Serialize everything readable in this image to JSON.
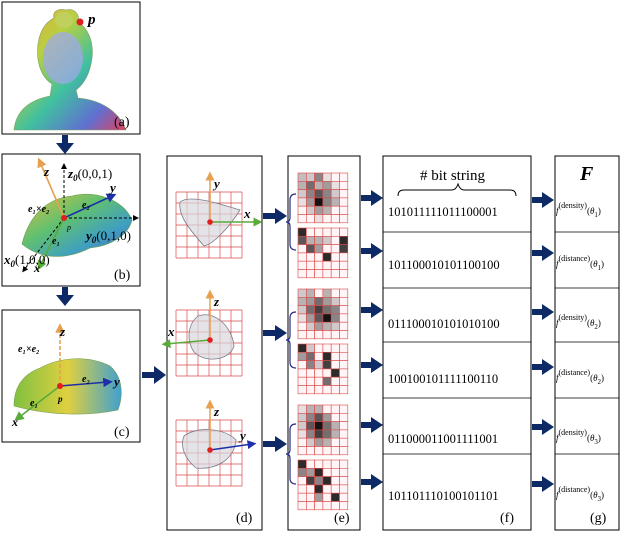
{
  "panels": {
    "a": "(a)",
    "b": "(b)",
    "c": "(c)",
    "d": "(d)",
    "e": "(e)",
    "f": "(f)",
    "g": "(g)"
  },
  "point_label": "p",
  "panel_b": {
    "z0_sym": "z",
    "z0_sub": "0",
    "z0_coord": "(0,0,1)",
    "y0_sym": "y",
    "y0_sub": "0",
    "y0_coord": "(0,1,0)",
    "x0_sym": "x",
    "x0_sub": "0",
    "x0_coord": "(1,0,0)",
    "z": "z",
    "y": "y",
    "x": "x",
    "cross": "e₁×e₂",
    "e2": "e₂",
    "e1": "e₁",
    "p": "p"
  },
  "panel_c": {
    "z": "z",
    "y": "y",
    "x": "x",
    "cross": "e₁×e₂",
    "e2": "e₂",
    "e1": "e₁",
    "p": "p"
  },
  "panel_d": {
    "views": [
      {
        "axis_right": "x",
        "axis_up": "y"
      },
      {
        "axis_left": "x",
        "axis_up": "z"
      },
      {
        "axis_right": "y",
        "axis_up": "z"
      }
    ]
  },
  "bit_header": "# bit string",
  "bit_strings": [
    "101011111011100001",
    "101100010101100100",
    "011100010101010100",
    "100100101111100110",
    "011000011001111001",
    "101101110100101101"
  ],
  "F_title": "F",
  "features": [
    {
      "f": "f",
      "sup": "density",
      "theta": "θ",
      "sub": "1"
    },
    {
      "f": "f",
      "sup": "distance",
      "theta": "θ",
      "sub": "1"
    },
    {
      "f": "f",
      "sup": "density",
      "theta": "θ",
      "sub": "2"
    },
    {
      "f": "f",
      "sup": "distance",
      "theta": "θ",
      "sub": "2"
    },
    {
      "f": "f",
      "sup": "density",
      "theta": "θ",
      "sub": "3"
    },
    {
      "f": "f",
      "sup": "distance",
      "theta": "θ",
      "sub": "3"
    }
  ],
  "colors": {
    "arrow": "#0d2a66",
    "grid_red": "#d94a4a",
    "axis_blue": "#1e2fa8",
    "axis_orange": "#e6a050",
    "axis_green": "#5aaa3a",
    "point_red": "#e02020",
    "brace": "#2a2a8a"
  },
  "grids": [
    [
      [
        0.25,
        0.2,
        0.5,
        0.1,
        0.0,
        0.0
      ],
      [
        0.3,
        0.6,
        0.3,
        0.4,
        0.1,
        0.0
      ],
      [
        0.2,
        0.5,
        0.7,
        0.5,
        0.2,
        0.0
      ],
      [
        0.1,
        0.4,
        1.0,
        0.5,
        0.3,
        0.0
      ],
      [
        0.0,
        0.2,
        0.4,
        0.3,
        0.0,
        0.0
      ],
      [
        0.0,
        0.0,
        0.1,
        0.0,
        0.0,
        0.0
      ]
    ],
    [
      [
        0.9,
        0.0,
        0.0,
        0.0,
        0.0,
        0.0
      ],
      [
        0.7,
        0.3,
        0.3,
        0.2,
        0.0,
        0.9
      ],
      [
        0.0,
        0.7,
        0.4,
        0.0,
        0.0,
        0.8
      ],
      [
        0.0,
        0.0,
        0.0,
        0.9,
        0.0,
        0.0
      ],
      [
        0.0,
        0.0,
        0.0,
        0.0,
        0.0,
        0.0
      ],
      [
        0.0,
        0.0,
        0.0,
        0.0,
        0.0,
        0.0
      ]
    ],
    [
      [
        0.2,
        0.3,
        0.0,
        0.3,
        0.0,
        0.0
      ],
      [
        0.3,
        0.4,
        0.6,
        0.4,
        0.2,
        0.0
      ],
      [
        0.2,
        0.6,
        0.8,
        0.6,
        0.5,
        0.0
      ],
      [
        0.1,
        0.4,
        0.7,
        1.0,
        0.5,
        0.0
      ],
      [
        0.0,
        0.2,
        0.4,
        0.3,
        0.2,
        0.0
      ],
      [
        0.0,
        0.0,
        0.0,
        0.0,
        0.0,
        0.0
      ]
    ],
    [
      [
        0.9,
        0.2,
        0.0,
        0.0,
        0.0,
        0.0
      ],
      [
        0.4,
        0.6,
        0.0,
        0.9,
        0.0,
        0.0
      ],
      [
        0.0,
        0.5,
        0.2,
        0.8,
        0.0,
        0.0
      ],
      [
        0.0,
        0.0,
        0.0,
        0.0,
        0.9,
        0.0
      ],
      [
        0.0,
        0.0,
        0.0,
        0.6,
        0.0,
        0.0
      ],
      [
        0.0,
        0.0,
        0.0,
        0.0,
        0.0,
        0.0
      ]
    ],
    [
      [
        0.1,
        0.3,
        0.3,
        0.0,
        0.0,
        0.0
      ],
      [
        0.2,
        0.5,
        0.7,
        0.4,
        0.0,
        0.0
      ],
      [
        0.2,
        0.7,
        1.0,
        0.6,
        0.3,
        0.0
      ],
      [
        0.1,
        0.5,
        0.8,
        0.6,
        0.3,
        0.0
      ],
      [
        0.0,
        0.2,
        0.4,
        0.3,
        0.0,
        0.0
      ],
      [
        0.0,
        0.0,
        0.0,
        0.0,
        0.0,
        0.0
      ]
    ],
    [
      [
        0.9,
        0.0,
        0.0,
        0.0,
        0.0,
        0.0
      ],
      [
        0.5,
        0.4,
        0.9,
        0.0,
        0.0,
        0.0
      ],
      [
        0.0,
        0.8,
        0.5,
        0.9,
        0.0,
        0.0
      ],
      [
        0.0,
        0.0,
        0.9,
        0.0,
        0.0,
        0.0
      ],
      [
        0.0,
        0.0,
        0.4,
        0.0,
        0.9,
        0.0
      ],
      [
        0.0,
        0.0,
        0.0,
        0.0,
        0.0,
        0.0
      ]
    ]
  ]
}
